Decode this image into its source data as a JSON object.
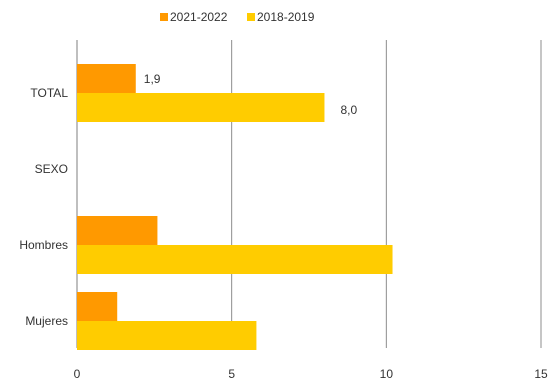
{
  "chart_data": {
    "type": "bar",
    "orientation": "horizontal",
    "categories": [
      "TOTAL",
      "SEXO",
      "Hombres",
      "Mujeres"
    ],
    "series": [
      {
        "name": "2021-2022",
        "color": "#FF9900",
        "values": [
          1.9,
          null,
          2.6,
          1.3
        ],
        "data_labels": [
          "1,9",
          "",
          "",
          ""
        ]
      },
      {
        "name": "2018-2019",
        "color": "#FFCC00",
        "values": [
          8.0,
          null,
          10.2,
          5.8
        ],
        "data_labels": [
          "8,0",
          "",
          "",
          ""
        ]
      }
    ],
    "xlim": [
      0,
      15
    ],
    "xticks": [
      "0",
      "5",
      "10",
      "15"
    ],
    "grid": true,
    "legend_position": "top"
  }
}
